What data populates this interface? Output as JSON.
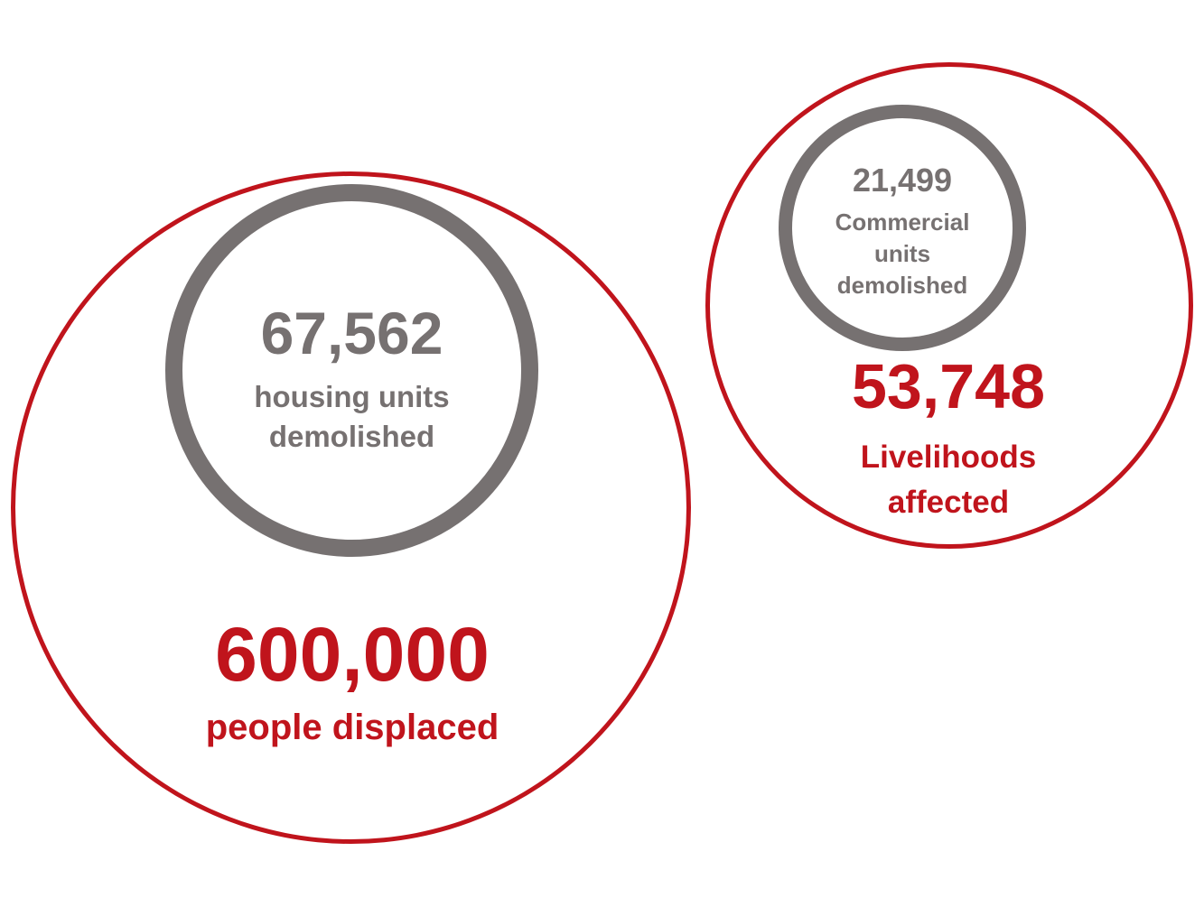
{
  "left_group": {
    "inner": {
      "value": "67,562",
      "label_line1": "housing units",
      "label_line2": "demolished"
    },
    "outer": {
      "value": "600,000",
      "label": "people displaced"
    }
  },
  "right_group": {
    "inner": {
      "value": "21,499",
      "label_line1": "Commercial",
      "label_line2": "units",
      "label_line3": "demolished"
    },
    "outer": {
      "value": "53,748",
      "label_line1": "Livelihoods",
      "label_line2": "affected"
    }
  },
  "colors": {
    "accent_red": "#c0141c",
    "neutral_grey": "#767171"
  }
}
